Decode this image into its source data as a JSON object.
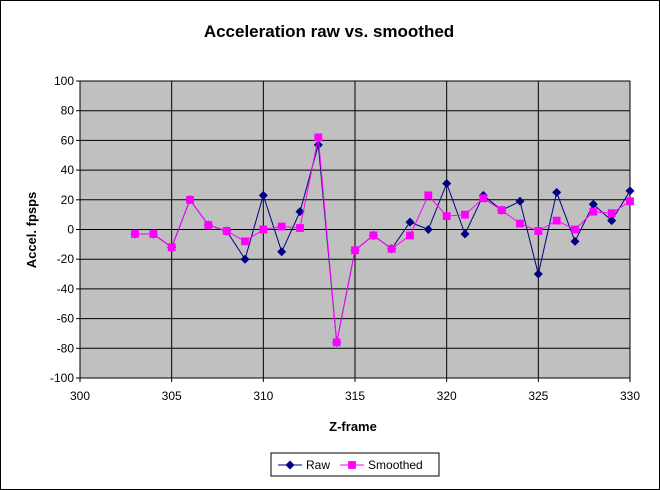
{
  "chart_data": {
    "type": "line",
    "title": "Acceleration raw vs. smoothed",
    "xlabel": "Z-frame",
    "ylabel": "Accel. fpsps",
    "xlim": [
      300,
      330
    ],
    "ylim": [
      -100,
      100
    ],
    "x_ticks": [
      300,
      305,
      310,
      315,
      320,
      325,
      330
    ],
    "y_ticks": [
      -100,
      -80,
      -60,
      -40,
      -20,
      0,
      20,
      40,
      60,
      80,
      100
    ],
    "grid": true,
    "legend_position": "bottom",
    "series": [
      {
        "name": "Raw",
        "color": "#000080",
        "marker": "diamond",
        "x": [
          303,
          304,
          305,
          306,
          307,
          308,
          309,
          310,
          311,
          312,
          313,
          314,
          315,
          316,
          317,
          318,
          319,
          320,
          321,
          322,
          323,
          324,
          325,
          326,
          327,
          328,
          329,
          330
        ],
        "y": [
          -3,
          -3,
          -12,
          20,
          3,
          -1,
          -20,
          23,
          -15,
          12,
          57,
          -76,
          -14,
          -4,
          -13,
          5,
          0,
          31,
          -3,
          23,
          13,
          19,
          -30,
          25,
          -8,
          17,
          6,
          26
        ]
      },
      {
        "name": "Smoothed",
        "color": "#FF00FF",
        "marker": "square",
        "x": [
          303,
          304,
          305,
          306,
          307,
          308,
          309,
          310,
          311,
          312,
          313,
          314,
          315,
          316,
          317,
          318,
          319,
          320,
          321,
          322,
          323,
          324,
          325,
          326,
          327,
          328,
          329,
          330
        ],
        "y": [
          -3,
          -3,
          -12,
          20,
          3,
          -1,
          -8,
          0,
          2,
          1,
          62,
          -76,
          -14,
          -4,
          -13,
          -4,
          23,
          9,
          10,
          21,
          13,
          4,
          -1,
          6,
          0,
          12,
          11,
          19
        ]
      }
    ]
  }
}
